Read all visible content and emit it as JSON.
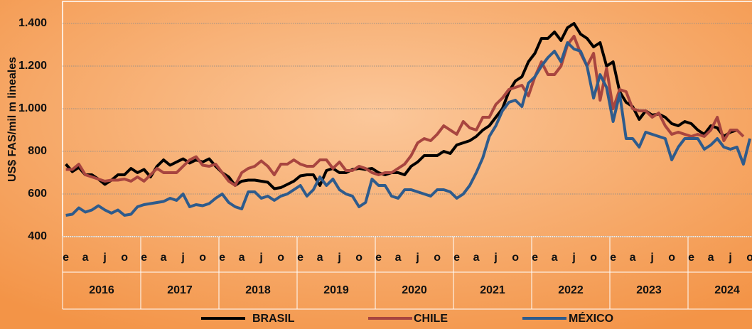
{
  "chart_data": {
    "type": "line",
    "y_label": "US$ FAS/mil m lineales",
    "categories": [
      "e",
      null,
      null,
      "a",
      null,
      null,
      "j",
      null,
      null,
      "o",
      null,
      null,
      "e",
      null,
      null,
      "a",
      null,
      null,
      "j",
      null,
      null,
      "o",
      null,
      null,
      "e",
      null,
      null,
      "a",
      null,
      null,
      "j",
      null,
      null,
      "o",
      null,
      null,
      "e",
      null,
      null,
      "a",
      null,
      null,
      "j",
      null,
      null,
      "o",
      null,
      null,
      "e",
      null,
      null,
      "a",
      null,
      null,
      "j",
      null,
      null,
      "o",
      null,
      null,
      "e",
      null,
      null,
      "a",
      null,
      null,
      "j",
      null,
      null,
      "o",
      null,
      null,
      "e",
      null,
      null,
      "a",
      null,
      null,
      "j",
      null,
      null,
      "o",
      null,
      null,
      "e",
      null,
      null,
      "a",
      null,
      null,
      "j",
      null,
      null,
      "o",
      null,
      null,
      "e",
      null,
      null,
      "a",
      null,
      null,
      "j",
      null,
      null,
      "o",
      null,
      null
    ],
    "years": [
      "2016",
      "2017",
      "2018",
      "2019",
      "2020",
      "2021",
      "2022",
      "2023",
      "2024"
    ],
    "series": [
      {
        "name": "BRASIL",
        "color": "#000000",
        "values": [
          740,
          705,
          725,
          690,
          690,
          670,
          645,
          665,
          690,
          690,
          720,
          700,
          715,
          680,
          730,
          760,
          735,
          750,
          765,
          745,
          760,
          750,
          765,
          730,
          700,
          680,
          640,
          660,
          665,
          665,
          660,
          655,
          625,
          630,
          645,
          660,
          685,
          690,
          690,
          640,
          710,
          720,
          700,
          700,
          715,
          720,
          715,
          720,
          700,
          690,
          700,
          700,
          690,
          730,
          750,
          780,
          780,
          780,
          800,
          790,
          830,
          840,
          850,
          870,
          900,
          920,
          960,
          1000,
          1080,
          1130,
          1150,
          1220,
          1260,
          1330,
          1330,
          1360,
          1320,
          1380,
          1400,
          1350,
          1330,
          1290,
          1310,
          1200,
          1220,
          1080,
          1030,
          1010,
          950,
          990,
          970,
          975,
          960,
          930,
          920,
          940,
          930,
          900,
          880,
          920,
          910,
          870,
          890,
          900,
          null,
          null,
          null,
          null
        ]
      },
      {
        "name": "CHILE",
        "color": "#a8453f",
        "values": [
          715,
          715,
          740,
          690,
          680,
          670,
          660,
          665,
          665,
          670,
          660,
          680,
          660,
          690,
          720,
          700,
          700,
          700,
          730,
          760,
          775,
          735,
          730,
          740,
          700,
          660,
          640,
          700,
          720,
          730,
          755,
          730,
          690,
          740,
          740,
          760,
          740,
          730,
          730,
          760,
          760,
          720,
          750,
          710,
          710,
          730,
          720,
          700,
          690,
          700,
          700,
          720,
          740,
          780,
          840,
          860,
          850,
          880,
          920,
          900,
          880,
          940,
          910,
          900,
          960,
          960,
          1020,
          1050,
          1090,
          1100,
          1110,
          1060,
          1150,
          1220,
          1160,
          1160,
          1200,
          1300,
          1340,
          1260,
          1200,
          1260,
          1040,
          1190,
          1000,
          1090,
          1080,
          1000,
          990,
          990,
          960,
          980,
          920,
          880,
          890,
          880,
          870,
          880,
          870,
          900,
          960,
          850,
          900,
          900,
          870,
          null,
          null,
          null
        ]
      },
      {
        "name": "MÉXICO",
        "color": "#2e5b8c",
        "values": [
          500,
          505,
          535,
          515,
          525,
          545,
          525,
          510,
          525,
          500,
          505,
          540,
          550,
          555,
          560,
          565,
          580,
          570,
          600,
          540,
          550,
          545,
          555,
          580,
          600,
          560,
          540,
          530,
          610,
          610,
          580,
          590,
          570,
          590,
          600,
          620,
          640,
          590,
          620,
          680,
          640,
          670,
          620,
          600,
          590,
          540,
          560,
          670,
          640,
          640,
          590,
          580,
          620,
          620,
          610,
          600,
          590,
          620,
          620,
          610,
          580,
          600,
          640,
          700,
          770,
          870,
          920,
          990,
          1030,
          1040,
          1010,
          1120,
          1150,
          1200,
          1240,
          1270,
          1220,
          1310,
          1280,
          1270,
          1200,
          1050,
          1160,
          1100,
          940,
          1070,
          860,
          860,
          820,
          890,
          880,
          870,
          860,
          760,
          820,
          860,
          860,
          860,
          810,
          830,
          860,
          820,
          810,
          820,
          740,
          860,
          null,
          null
        ]
      }
    ],
    "ylim": [
      400,
      1500
    ],
    "yticks": [
      {
        "value": 400,
        "label": "400"
      },
      {
        "value": 600,
        "label": "600"
      },
      {
        "value": 800,
        "label": "800"
      },
      {
        "value": 1000,
        "label": "1.000"
      },
      {
        "value": 1200,
        "label": "1.200"
      },
      {
        "value": 1400,
        "label": "1.400"
      }
    ],
    "grid": true
  }
}
